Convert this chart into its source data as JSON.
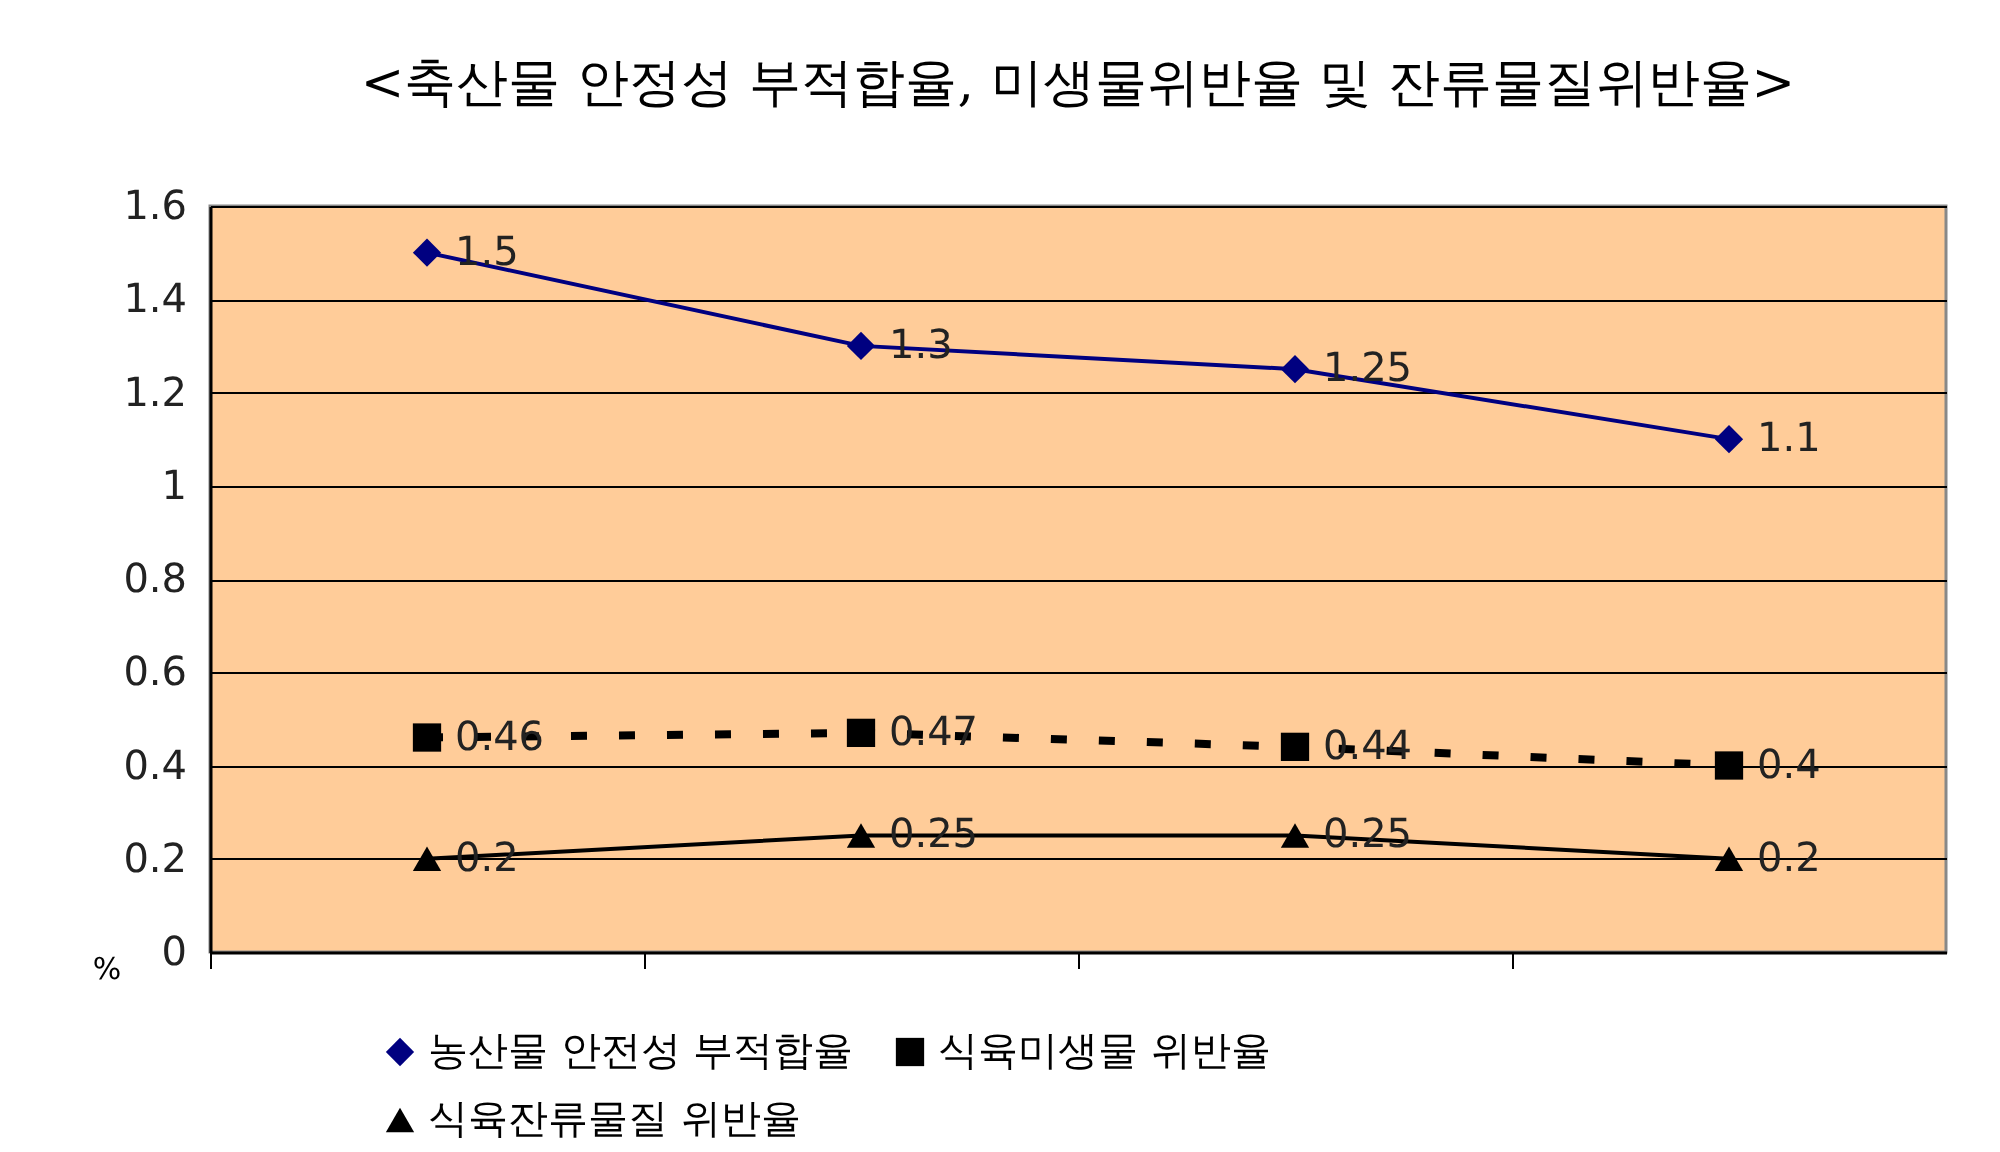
{
  "chart_data": {
    "type": "line",
    "title": "<축산물 안정성 부적합율, 미생물위반율 및 잔류물질위반율>",
    "ylabel": "%",
    "categories": [
      null,
      null,
      null,
      null
    ],
    "series": [
      {
        "name": "농산물 안전성 부적합율",
        "color": "#000080",
        "marker": "diamond",
        "line_style": "solid",
        "values": [
          1.5,
          1.3,
          1.25,
          1.1
        ]
      },
      {
        "name": "식육미생물 위반율",
        "color": "#000000",
        "marker": "square",
        "line_style": "dashed",
        "values": [
          0.46,
          0.47,
          0.44,
          0.4
        ]
      },
      {
        "name": "식육잔류물질 위반율",
        "color": "#000000",
        "marker": "triangle",
        "line_style": "solid",
        "values": [
          0.2,
          0.25,
          0.25,
          0.2
        ]
      }
    ],
    "ylim": [
      0,
      1.6
    ],
    "yticks": [
      0,
      0.2,
      0.4,
      0.6,
      0.8,
      1,
      1.2,
      1.4,
      1.6
    ],
    "grid": "y",
    "legend": "bottom",
    "tick_labels": "y",
    "data_labels": true
  }
}
